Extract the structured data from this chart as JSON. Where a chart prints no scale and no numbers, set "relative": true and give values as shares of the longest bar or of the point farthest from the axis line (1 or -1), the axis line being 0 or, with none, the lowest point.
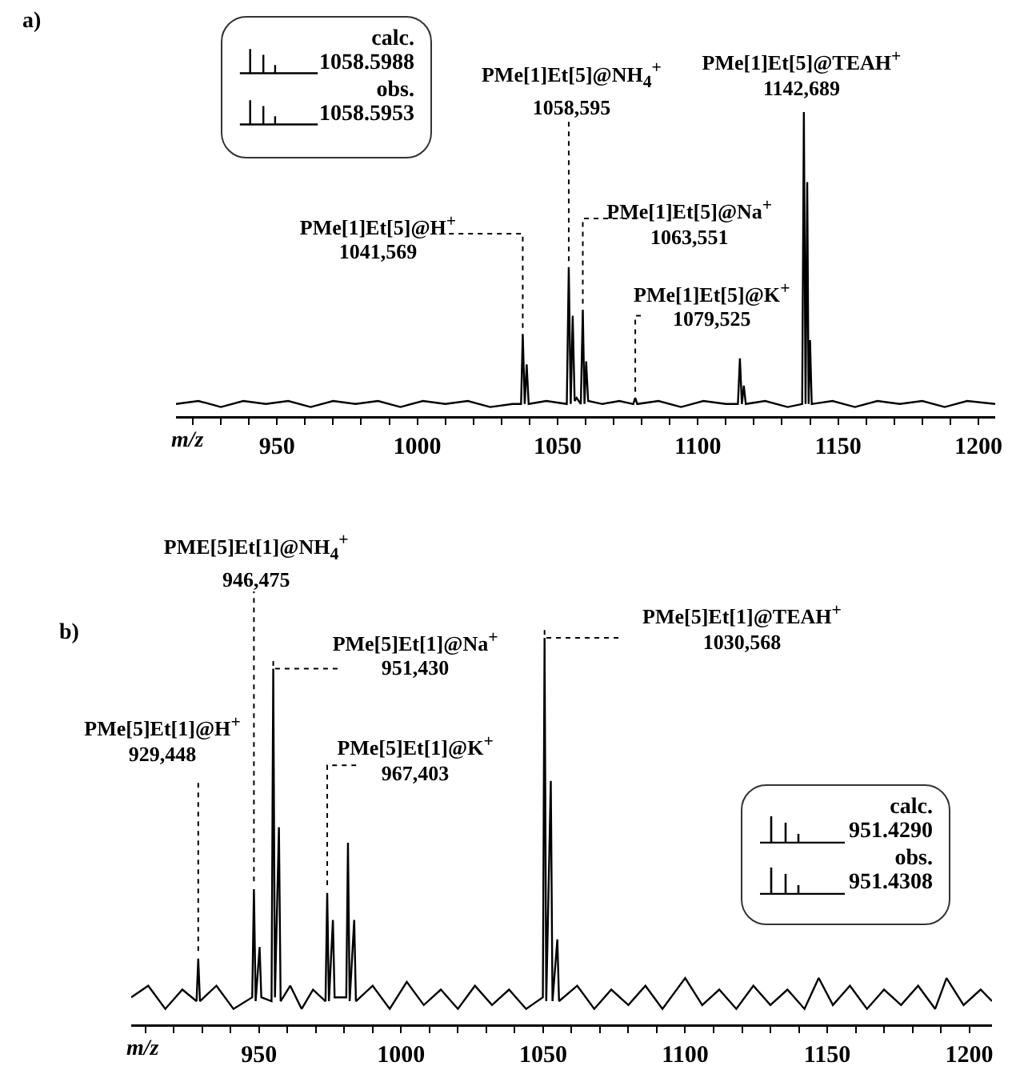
{
  "chart_data": [
    {
      "type": "line",
      "xlabel": "m/z",
      "relative": true,
      "xlim": [
        914,
        1206
      ],
      "xticks": [
        {
          "value": 920,
          "label": null
        },
        {
          "value": 930,
          "label": null
        },
        {
          "value": 940,
          "label": null
        },
        950,
        {
          "value": 960,
          "label": null
        },
        {
          "value": 970,
          "label": null
        },
        {
          "value": 980,
          "label": null
        },
        {
          "value": 990,
          "label": null
        },
        1000,
        {
          "value": 1010,
          "label": null
        },
        {
          "value": 1020,
          "label": null
        },
        {
          "value": 1030,
          "label": null
        },
        {
          "value": 1040,
          "label": null
        },
        1050,
        {
          "value": 1060,
          "label": null
        },
        {
          "value": 1070,
          "label": null
        },
        {
          "value": 1080,
          "label": null
        },
        {
          "value": 1090,
          "label": null
        },
        1100,
        {
          "value": 1110,
          "label": null
        },
        {
          "value": 1120,
          "label": null
        },
        {
          "value": 1130,
          "label": null
        },
        {
          "value": 1140,
          "label": null
        },
        1150,
        {
          "value": 1160,
          "label": null
        },
        {
          "value": 1170,
          "label": null
        },
        {
          "value": 1180,
          "label": null
        },
        {
          "value": 1190,
          "label": null
        },
        1200
      ],
      "series": [
        {
          "color": "#000000",
          "x": [
            914,
            922,
            930,
            938,
            946,
            954,
            962,
            970,
            978,
            986,
            994,
            1002,
            1010,
            1018,
            1026,
            1034,
            1037,
            1037.6,
            1038.3,
            1039,
            1039.7,
            1046,
            1053.3,
            1054,
            1054.7,
            1055.4,
            1056.1,
            1056.8,
            1058.3,
            1059,
            1059.6,
            1060.2,
            1060.9,
            1066,
            1072,
            1077,
            1077.7,
            1078.4,
            1086,
            1094,
            1102,
            1110,
            1114.3,
            1115,
            1115.7,
            1116.4,
            1117.1,
            1124,
            1132,
            1137.2,
            1137.8,
            1138.4,
            1139,
            1139.5,
            1140,
            1140.6,
            1148,
            1156,
            1164,
            1172,
            1180,
            1188,
            1196,
            1206
          ],
          "values": [
            0.04,
            0.05,
            0.03,
            0.05,
            0.04,
            0.05,
            0.03,
            0.05,
            0.04,
            0.05,
            0.03,
            0.05,
            0.04,
            0.05,
            0.03,
            0.04,
            0.04,
            0.27,
            0.04,
            0.17,
            0.04,
            0.05,
            0.04,
            0.49,
            0.04,
            0.33,
            0.05,
            0.06,
            0.04,
            0.35,
            0.04,
            0.18,
            0.05,
            0.04,
            0.05,
            0.04,
            0.06,
            0.04,
            0.05,
            0.03,
            0.05,
            0.04,
            0.04,
            0.19,
            0.04,
            0.1,
            0.04,
            0.05,
            0.03,
            0.04,
            1,
            0.04,
            0.77,
            0.04,
            0.25,
            0.04,
            0.05,
            0.03,
            0.05,
            0.04,
            0.05,
            0.03,
            0.05,
            0.04
          ]
        }
      ],
      "annotations": [
        "a)",
        "PMe[1]Et[5]@H$^{+}$\n1041,569",
        "PMe[1]Et[5]@NH$_{4}$$^{+}$\n1058,595",
        "PMe[1]Et[5]@Na$^{+}$\n1063,551",
        "PMe[1]Et[5]@K$^{+}$\n1079,525",
        "PMe[1]Et[5]@TEAH$^{+}$\n1142,689",
        "calc.\n1058.5988",
        "obs.\n1058.5953"
      ]
    },
    {
      "type": "line",
      "xlabel": "m/z",
      "relative": true,
      "xlim": [
        905,
        1208
      ],
      "xticks": [
        {
          "value": 910,
          "label": null
        },
        {
          "value": 920,
          "label": null
        },
        {
          "value": 930,
          "label": null
        },
        {
          "value": 940,
          "label": null
        },
        950,
        {
          "value": 960,
          "label": null
        },
        {
          "value": 970,
          "label": null
        },
        {
          "value": 980,
          "label": null
        },
        {
          "value": 990,
          "label": null
        },
        1000,
        {
          "value": 1010,
          "label": null
        },
        {
          "value": 1020,
          "label": null
        },
        {
          "value": 1030,
          "label": null
        },
        {
          "value": 1040,
          "label": null
        },
        1050,
        {
          "value": 1060,
          "label": null
        },
        {
          "value": 1070,
          "label": null
        },
        {
          "value": 1080,
          "label": null
        },
        {
          "value": 1090,
          "label": null
        },
        1100,
        {
          "value": 1110,
          "label": null
        },
        {
          "value": 1120,
          "label": null
        },
        {
          "value": 1130,
          "label": null
        },
        {
          "value": 1140,
          "label": null
        },
        1150,
        {
          "value": 1160,
          "label": null
        },
        {
          "value": 1170,
          "label": null
        },
        {
          "value": 1180,
          "label": null
        },
        {
          "value": 1190,
          "label": null
        },
        1200
      ],
      "series": [
        {
          "color": "#000000",
          "x": [
            905,
            911,
            917,
            923,
            928,
            928.6,
            929.2,
            935,
            941,
            947.6,
            948.2,
            948.8,
            950.2,
            950.8,
            954.4,
            955,
            955.6,
            957,
            957.6,
            961,
            965,
            969,
            973.4,
            974,
            974.6,
            976,
            976.6,
            980.7,
            981.3,
            981.9,
            983.5,
            984.1,
            990,
            996,
            1002,
            1008,
            1014,
            1020,
            1026,
            1032,
            1038,
            1044,
            1049.9,
            1050.5,
            1051.1,
            1052.7,
            1053.3,
            1055,
            1055.6,
            1062,
            1068,
            1074,
            1080,
            1086,
            1092,
            1100,
            1106,
            1112,
            1118,
            1124,
            1130,
            1136,
            1142,
            1147,
            1152,
            1158,
            1164,
            1170,
            1176,
            1182,
            1188,
            1192,
            1198,
            1204,
            1208
          ],
          "values": [
            0.07,
            0.1,
            0.04,
            0.09,
            0.06,
            0.17,
            0.06,
            0.1,
            0.04,
            0.07,
            0.35,
            0.06,
            0.2,
            0.07,
            0.06,
            0.92,
            0.07,
            0.51,
            0.06,
            0.1,
            0.04,
            0.09,
            0.06,
            0.34,
            0.06,
            0.27,
            0.07,
            0.07,
            0.47,
            0.06,
            0.27,
            0.06,
            0.1,
            0.04,
            0.11,
            0.05,
            0.09,
            0.04,
            0.1,
            0.05,
            0.09,
            0.04,
            0.07,
            1,
            0.06,
            0.63,
            0.06,
            0.22,
            0.06,
            0.1,
            0.04,
            0.09,
            0.05,
            0.1,
            0.04,
            0.12,
            0.05,
            0.09,
            0.04,
            0.1,
            0.05,
            0.09,
            0.04,
            0.12,
            0.05,
            0.1,
            0.04,
            0.09,
            0.05,
            0.1,
            0.04,
            0.12,
            0.05,
            0.09,
            0.06
          ]
        }
      ],
      "annotations": [
        "b)",
        "PMe[5]Et[1]@H$^{+}$\n929,448",
        "PME[5]Et[1]@NH$_{4}$$^{+}$\n946,475",
        "PMe[5]Et[1]@Na$^{+}$\n951,430",
        "PMe[5]Et[1]@K$^{+}$\n967,403",
        "PMe[5]Et[1]@TEAH$^{+}$\n1030,568",
        "calc.\n951.4290",
        "obs.\n951.4308"
      ]
    }
  ]
}
